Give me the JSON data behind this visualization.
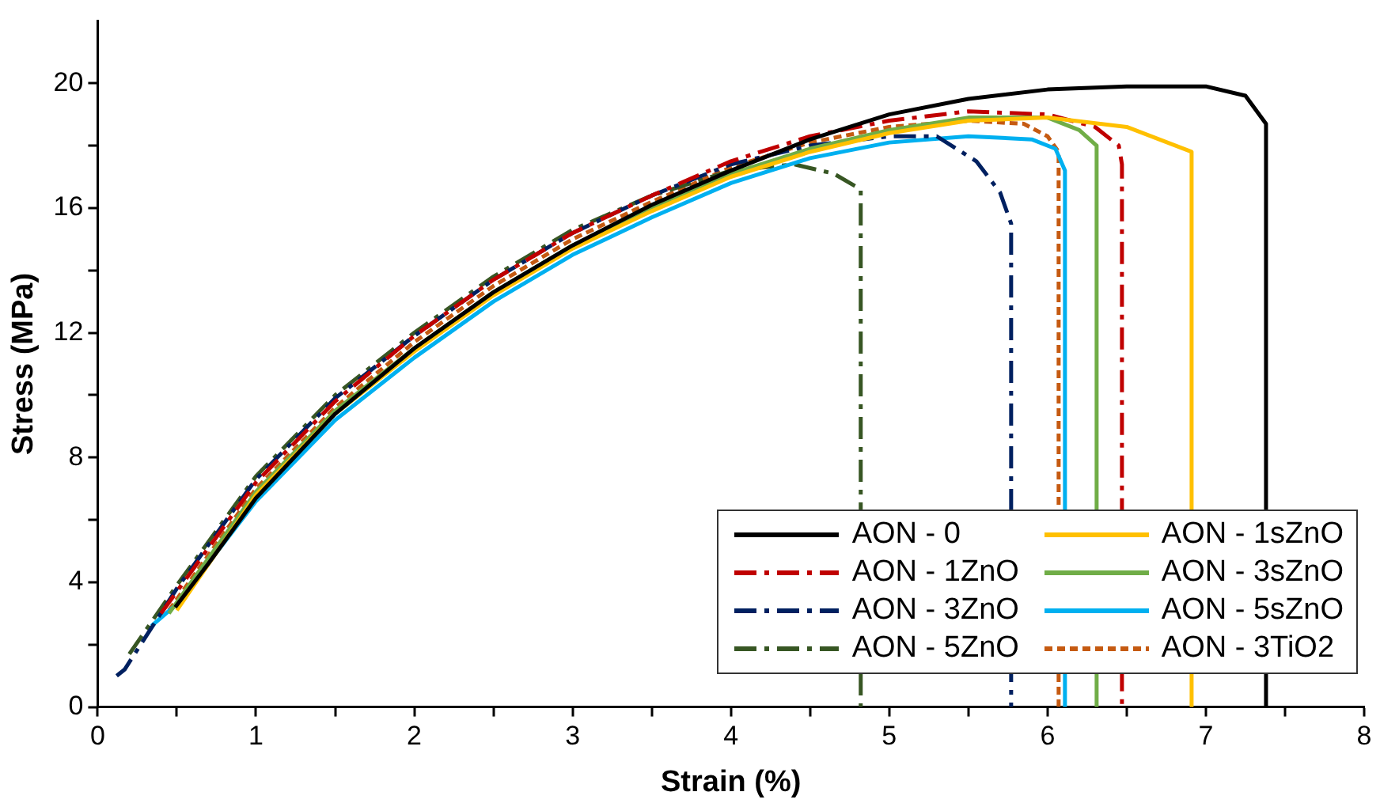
{
  "chart_data": {
    "type": "line",
    "xlabel": "Strain (%)",
    "ylabel": "Stress (MPa)",
    "xlim": [
      0,
      8
    ],
    "ylim": [
      0,
      22
    ],
    "xticks": [
      0,
      {
        "value": 0.5,
        "label": null
      },
      1,
      {
        "value": 1.5,
        "label": null
      },
      2,
      {
        "value": 2.5,
        "label": null
      },
      3,
      {
        "value": 3.5,
        "label": null
      },
      4,
      {
        "value": 4.5,
        "label": null
      },
      5,
      {
        "value": 5.5,
        "label": null
      },
      6,
      {
        "value": 6.5,
        "label": null
      },
      7,
      {
        "value": 7.5,
        "label": null
      },
      8
    ],
    "yticks": [
      0,
      {
        "value": 2,
        "label": null
      },
      4,
      {
        "value": 6,
        "label": null
      },
      8,
      {
        "value": 10,
        "label": null
      },
      12,
      {
        "value": 14,
        "label": null
      },
      16,
      {
        "value": 18,
        "label": null
      },
      20
    ],
    "grid": false,
    "legend": "bottom right",
    "marker": "none",
    "series": [
      {
        "name": "AON - 0",
        "color": "#000000",
        "line_style": "solid",
        "x": [
          0.49,
          0.7,
          1,
          1.5,
          2,
          2.5,
          3,
          3.5,
          4,
          4.5,
          5,
          5.5,
          6,
          6.5,
          7,
          7.25,
          7.38,
          7.38
        ],
        "values": [
          3.2,
          4.6,
          6.7,
          9.4,
          11.5,
          13.3,
          14.8,
          16.1,
          17.2,
          18.2,
          19.0,
          19.5,
          19.8,
          19.9,
          19.9,
          19.6,
          18.7,
          0
        ]
      },
      {
        "name": "AON - 1sZnO",
        "color": "#ffc000",
        "line_style": "solid",
        "x": [
          0.5,
          1,
          1.5,
          2,
          2.5,
          3,
          3.5,
          4,
          4.5,
          5,
          5.5,
          6,
          6.5,
          6.91,
          6.91
        ],
        "values": [
          3.1,
          6.8,
          9.4,
          11.4,
          13.2,
          14.7,
          15.9,
          17.0,
          17.8,
          18.4,
          18.8,
          18.9,
          18.6,
          17.8,
          0
        ]
      },
      {
        "name": "AON - 1ZnO",
        "color": "#c00000",
        "line_style": "dashed",
        "x": [
          0.4,
          1,
          1.5,
          2,
          2.5,
          3,
          3.5,
          4,
          4.5,
          5,
          5.5,
          6,
          6.3,
          6.45,
          6.47,
          6.47
        ],
        "values": [
          3,
          7.2,
          9.8,
          11.9,
          13.7,
          15.2,
          16.4,
          17.5,
          18.3,
          18.8,
          19.1,
          19.0,
          18.6,
          18.0,
          17.4,
          0
        ]
      },
      {
        "name": "AON - 3sZnO",
        "color": "#70ad47",
        "line_style": "solid",
        "x": [
          0.45,
          1,
          1.5,
          2,
          2.5,
          3,
          3.5,
          4,
          4.5,
          5,
          5.5,
          6,
          6.2,
          6.31,
          6.31
        ],
        "values": [
          3,
          6.9,
          9.5,
          11.5,
          13.3,
          14.8,
          16.0,
          17.1,
          17.9,
          18.5,
          18.9,
          18.9,
          18.5,
          18.0,
          0
        ]
      },
      {
        "name": "AON - 3ZnO",
        "color": "#002060",
        "line_style": "dashed",
        "x": [
          0.12,
          0.17,
          0.5,
          1,
          1.5,
          2,
          2.5,
          3,
          3.5,
          4,
          4.5,
          5,
          5.3,
          5.55,
          5.7,
          5.77,
          5.77
        ],
        "values": [
          1.0,
          1.2,
          3.8,
          7.3,
          9.9,
          11.9,
          13.7,
          15.2,
          16.4,
          17.4,
          18.0,
          18.3,
          18.3,
          17.5,
          16.5,
          15.5,
          0
        ]
      },
      {
        "name": "AON - 5sZnO",
        "color": "#00b0f0",
        "line_style": "solid",
        "x": [
          0.34,
          0.5,
          1,
          1.5,
          2,
          2.5,
          3,
          3.5,
          4,
          4.5,
          5,
          5.5,
          5.9,
          6.05,
          6.11,
          6.11
        ],
        "values": [
          2.6,
          3.3,
          6.6,
          9.2,
          11.2,
          13.0,
          14.5,
          15.7,
          16.8,
          17.6,
          18.1,
          18.3,
          18.2,
          17.9,
          17.2,
          0
        ]
      },
      {
        "name": "AON - 5ZnO",
        "color": "#375623",
        "line_style": "dashed",
        "x": [
          0.2,
          0.5,
          1,
          1.5,
          2,
          2.5,
          3,
          3.5,
          4,
          4.4,
          4.65,
          4.82,
          4.82
        ],
        "values": [
          1.7,
          3.9,
          7.4,
          10.0,
          12.0,
          13.8,
          15.3,
          16.4,
          17.2,
          17.4,
          17.1,
          16.6,
          0
        ]
      },
      {
        "name": "AON - 3TiO2",
        "color": "#c55a11",
        "line_style": "dotted",
        "x": [
          0.45,
          1,
          1.5,
          2,
          2.5,
          3,
          3.5,
          4,
          4.5,
          5,
          5.5,
          5.85,
          6.0,
          6.07,
          6.07
        ],
        "values": [
          3.1,
          7.0,
          9.6,
          11.7,
          13.5,
          15.0,
          16.2,
          17.3,
          18.1,
          18.6,
          18.8,
          18.7,
          18.3,
          17.8,
          0
        ]
      }
    ]
  }
}
